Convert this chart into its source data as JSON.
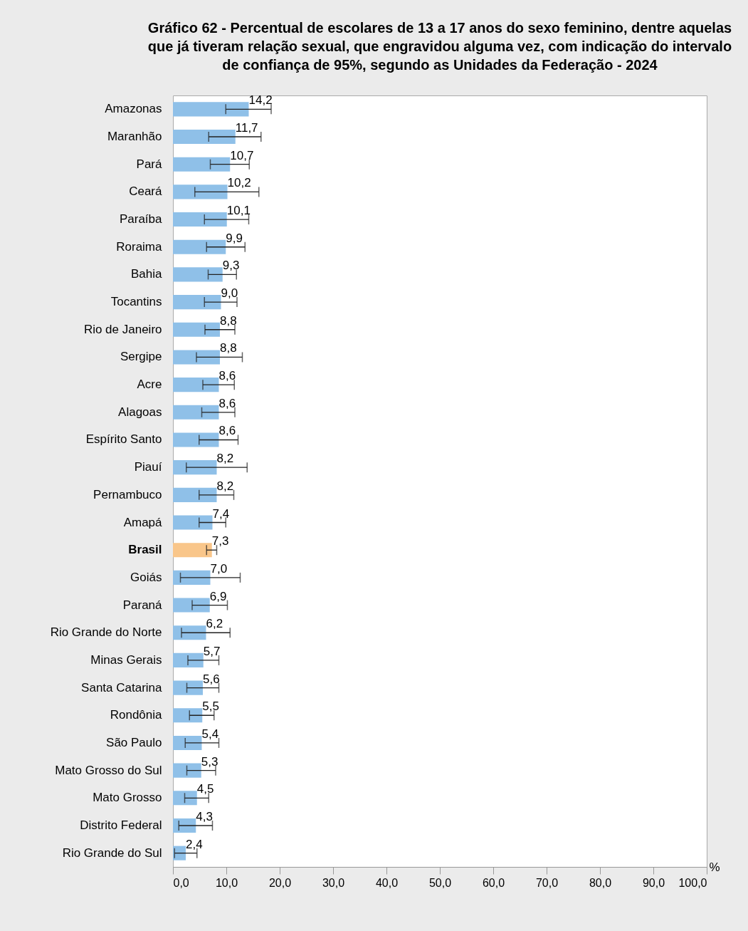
{
  "chart_data": {
    "type": "bar",
    "orientation": "horizontal",
    "title": "Gráfico 62 - Percentual de escolares de 13 a 17 anos do sexo feminino, dentre aquelas que já tiveram relação sexual, que engravidou alguma vez, com indicação do intervalo de confiança de 95%, segundo as Unidades da Federação - 2024",
    "xlabel": "%",
    "categories": [
      "Amazonas",
      "Maranhão",
      "Pará",
      "Ceará",
      "Paraíba",
      "Roraima",
      "Bahia",
      "Tocantins",
      "Rio de Janeiro",
      "Sergipe",
      "Acre",
      "Alagoas",
      "Espírito Santo",
      "Piauí",
      "Pernambuco",
      "Amapá",
      "Brasil",
      "Goiás",
      "Paraná",
      "Rio Grande do Norte",
      "Minas Gerais",
      "Santa Catarina",
      "Rondônia",
      "São Paulo",
      "Mato Grosso do Sul",
      "Mato Grosso",
      "Distrito Federal",
      "Rio Grande do Sul"
    ],
    "values": [
      14.2,
      11.7,
      10.7,
      10.2,
      10.1,
      9.9,
      9.3,
      9.0,
      8.8,
      8.8,
      8.6,
      8.6,
      8.6,
      8.2,
      8.2,
      7.4,
      7.3,
      7.0,
      6.9,
      6.2,
      5.7,
      5.6,
      5.5,
      5.4,
      5.3,
      4.5,
      4.3,
      2.4
    ],
    "value_labels": [
      "14,2",
      "11,7",
      "10,7",
      "10,2",
      "10,1",
      "9,9",
      "9,3",
      "9,0",
      "8,8",
      "8,8",
      "8,6",
      "8,6",
      "8,6",
      "8,2",
      "8,2",
      "7,4",
      "7,3",
      "7,0",
      "6,9",
      "6,2",
      "5,7",
      "5,6",
      "5,5",
      "5,4",
      "5,3",
      "4,5",
      "4,3",
      "2,4"
    ],
    "errors": [
      [
        9.9,
        18.4
      ],
      [
        6.7,
        16.5
      ],
      [
        7.0,
        14.3
      ],
      [
        4.1,
        16.1
      ],
      [
        5.9,
        14.2
      ],
      [
        6.3,
        13.5
      ],
      [
        6.6,
        11.9
      ],
      [
        5.9,
        12.0
      ],
      [
        6.0,
        11.6
      ],
      [
        4.4,
        13.0
      ],
      [
        5.6,
        11.5
      ],
      [
        5.4,
        11.6
      ],
      [
        4.9,
        12.2
      ],
      [
        2.5,
        13.9
      ],
      [
        4.9,
        11.4
      ],
      [
        4.9,
        9.9
      ],
      [
        6.3,
        8.2
      ],
      [
        1.4,
        12.6
      ],
      [
        3.6,
        10.2
      ],
      [
        1.6,
        10.7
      ],
      [
        2.8,
        8.6
      ],
      [
        2.6,
        8.6
      ],
      [
        3.1,
        7.7
      ],
      [
        2.3,
        8.6
      ],
      [
        2.6,
        8.0
      ],
      [
        2.2,
        6.7
      ],
      [
        1.1,
        7.4
      ],
      [
        0.3,
        4.5
      ]
    ],
    "colors": [
      "#8fc0e8",
      "#8fc0e8",
      "#8fc0e8",
      "#8fc0e8",
      "#8fc0e8",
      "#8fc0e8",
      "#8fc0e8",
      "#8fc0e8",
      "#8fc0e8",
      "#8fc0e8",
      "#8fc0e8",
      "#8fc0e8",
      "#8fc0e8",
      "#8fc0e8",
      "#8fc0e8",
      "#8fc0e8",
      "#f9c68a",
      "#8fc0e8",
      "#8fc0e8",
      "#8fc0e8",
      "#8fc0e8",
      "#8fc0e8",
      "#8fc0e8",
      "#8fc0e8",
      "#8fc0e8",
      "#8fc0e8",
      "#8fc0e8",
      "#8fc0e8"
    ],
    "xlim": [
      0,
      100
    ],
    "xticks": [
      {
        "value": 0,
        "label": "0,0"
      },
      {
        "value": 10,
        "label": "10,0"
      },
      {
        "value": 20,
        "label": "20,0"
      },
      {
        "value": 30,
        "label": "30,0"
      },
      {
        "value": 40,
        "label": "40,0"
      },
      {
        "value": 50,
        "label": "50,0"
      },
      {
        "value": 60,
        "label": "60,0"
      },
      {
        "value": 70,
        "label": "70,0"
      },
      {
        "value": 80,
        "label": "80,0"
      },
      {
        "value": 90,
        "label": "90,0"
      },
      {
        "value": 100,
        "label": "100,0"
      }
    ],
    "grid": false
  }
}
